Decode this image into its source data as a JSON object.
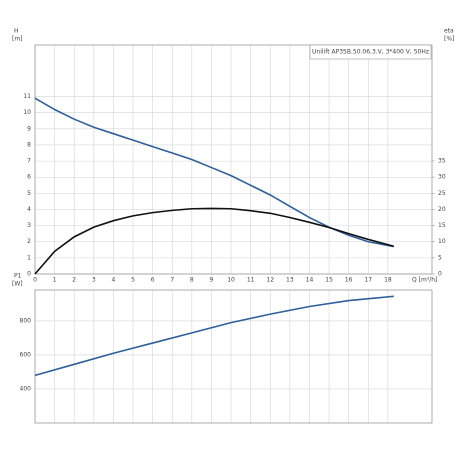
{
  "chart_data": [
    {
      "type": "line",
      "title": "Unilift AP35B.50.06.3.V, 3*400 V, 50Hz",
      "y_label": "H",
      "y_unit": "[m]",
      "y2_label": "eta",
      "y2_unit": "[%]",
      "x_label": "Q [m³/h]",
      "x": [
        0,
        1,
        2,
        3,
        4,
        5,
        6,
        7,
        8,
        9,
        10,
        11,
        12,
        13,
        14,
        15,
        16,
        17,
        18.3
      ],
      "series": [
        {
          "color": "#2e5f9a",
          "axis": "y",
          "values": [
            10.9,
            10.2,
            9.6,
            9.1,
            8.7,
            8.3,
            7.9,
            7.5,
            7.1,
            6.6,
            6.1,
            5.5,
            4.9,
            4.2,
            3.5,
            2.9,
            2.4,
            2.0,
            1.7
          ]
        },
        {
          "color": "#111111",
          "axis": "y2",
          "values": [
            0,
            7,
            11.5,
            14.5,
            16.5,
            18,
            19,
            19.7,
            20.2,
            20.3,
            20.2,
            19.6,
            18.8,
            17.5,
            16,
            14.4,
            12.5,
            10.7,
            8.6
          ]
        }
      ],
      "xlim": [
        0,
        20.25
      ],
      "xticks": [
        0,
        1,
        2,
        3,
        4,
        5,
        6,
        7,
        8,
        9,
        10,
        11,
        12,
        13,
        14,
        15,
        16,
        17,
        18
      ],
      "ylim": [
        0,
        14.2
      ],
      "yticks": [
        0,
        1,
        2,
        3,
        4,
        5,
        6,
        7,
        8,
        9,
        10,
        11
      ],
      "y2lim": [
        0,
        70.9
      ],
      "y2ticks": [
        0,
        5,
        10,
        15,
        20,
        25,
        30,
        35
      ],
      "grid": true
    },
    {
      "type": "line",
      "y_label": "P1",
      "y_unit": "[W]",
      "x": [
        0,
        2,
        4,
        6,
        8,
        10,
        12,
        14,
        16,
        18.3
      ],
      "series": [
        {
          "color": "#2e5f9a",
          "axis": "y",
          "values": [
            480,
            545,
            610,
            670,
            730,
            790,
            840,
            885,
            920,
            945
          ]
        }
      ],
      "xlim": [
        0,
        20.25
      ],
      "xticks": [
        0,
        1,
        2,
        3,
        4,
        5,
        6,
        7,
        8,
        9,
        10,
        11,
        12,
        13,
        14,
        15,
        16,
        17,
        18
      ],
      "ylim": [
        200,
        982
      ],
      "yticks": [
        400,
        600,
        800
      ],
      "grid": true
    }
  ]
}
